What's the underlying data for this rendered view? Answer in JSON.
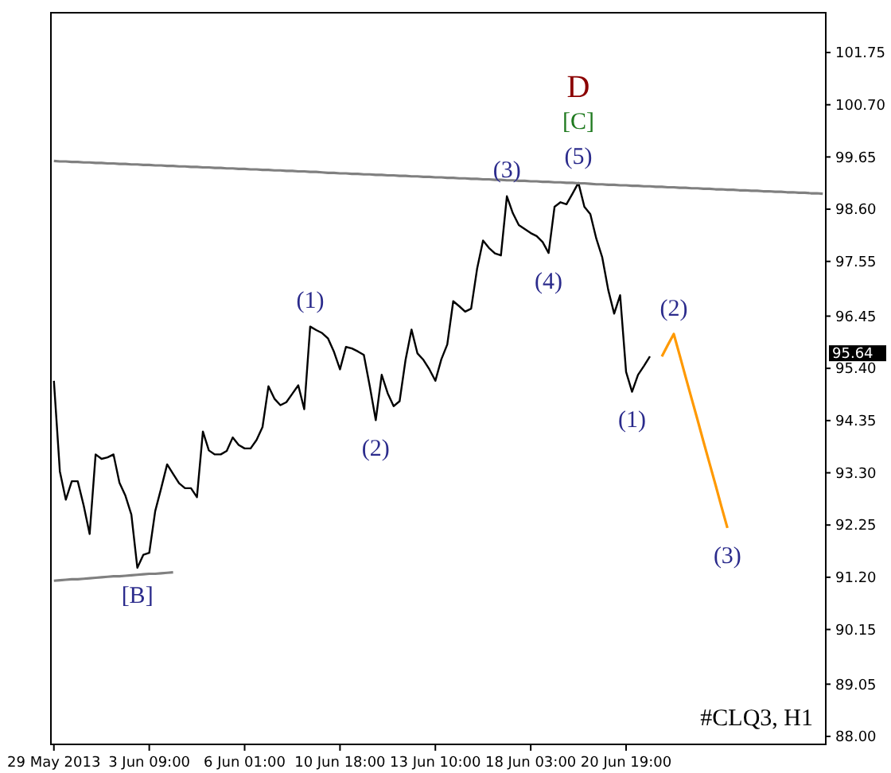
{
  "chart_data": {
    "type": "line",
    "grid": false,
    "marker": "none",
    "line_style": "solid",
    "ylim": [
      87.84,
      102.55
    ],
    "categories": [
      "29 May 2013",
      null,
      null,
      null,
      null,
      null,
      null,
      null,
      null,
      null,
      null,
      null,
      null,
      null,
      null,
      null,
      "3 Jun 09:00",
      null,
      null,
      null,
      null,
      null,
      null,
      null,
      null,
      null,
      null,
      null,
      null,
      null,
      null,
      null,
      "6 Jun 01:00",
      null,
      null,
      null,
      null,
      null,
      null,
      null,
      null,
      null,
      null,
      null,
      null,
      null,
      null,
      null,
      "10 Jun 18:00",
      null,
      null,
      null,
      null,
      null,
      null,
      null,
      null,
      null,
      null,
      null,
      null,
      null,
      null,
      null,
      "13 Jun 10:00",
      null,
      null,
      null,
      null,
      null,
      null,
      null,
      null,
      null,
      null,
      null,
      null,
      null,
      null,
      null,
      "18 Jun 03:00",
      null,
      null,
      null,
      null,
      null,
      null,
      null,
      null,
      null,
      null,
      null,
      null,
      null,
      null,
      null,
      "20 Jun 19:00",
      null,
      null,
      null,
      null,
      null,
      null,
      null,
      null,
      null,
      null,
      null,
      null,
      null,
      null,
      null,
      null,
      null,
      null,
      null,
      null,
      null,
      null,
      null,
      null,
      null,
      null,
      null,
      null,
      null,
      null,
      null,
      null,
      null
    ],
    "yticks": [
      {
        "value": 88,
        "label": "88.00"
      },
      {
        "value": 89.05,
        "label": "89.05"
      },
      {
        "value": 90.15,
        "label": "90.15"
      },
      {
        "value": 91.2,
        "label": "91.20"
      },
      {
        "value": 92.25,
        "label": "92.25"
      },
      {
        "value": 93.3,
        "label": "93.30"
      },
      {
        "value": 94.35,
        "label": "94.35"
      },
      {
        "value": 95.4,
        "label": "95.40"
      },
      {
        "value": 96.45,
        "label": "96.45"
      },
      {
        "value": 97.55,
        "label": "97.55"
      },
      {
        "value": 98.6,
        "label": "98.60"
      },
      {
        "value": 99.65,
        "label": "99.65"
      },
      {
        "value": 100.7,
        "label": "100.70"
      },
      {
        "value": 101.75,
        "label": "101.75"
      }
    ],
    "series": [
      {
        "color": "#000000",
        "values": [
          95.15,
          93.33,
          92.76,
          93.13,
          93.13,
          92.64,
          92.07,
          93.67,
          93.58,
          93.61,
          93.67,
          93.1,
          92.84,
          92.46,
          91.39,
          91.65,
          91.69,
          92.53,
          92.99,
          93.47,
          93.28,
          93.09,
          92.99,
          92.99,
          92.81,
          94.13,
          93.75,
          93.67,
          93.67,
          93.74,
          94.01,
          93.86,
          93.79,
          93.79,
          93.96,
          94.22,
          95.04,
          94.79,
          94.66,
          94.72,
          94.89,
          95.06,
          94.58,
          96.24,
          96.17,
          96.11,
          96.0,
          95.73,
          95.38,
          95.83,
          95.8,
          95.74,
          95.67,
          95.04,
          94.36,
          95.27,
          94.9,
          94.64,
          94.74,
          95.57,
          96.18,
          95.7,
          95.57,
          95.38,
          95.15,
          95.58,
          95.88,
          96.75,
          96.65,
          96.54,
          96.6,
          97.4,
          97.97,
          97.82,
          97.71,
          97.67,
          98.86,
          98.52,
          98.28,
          98.2,
          98.12,
          98.06,
          97.94,
          97.72,
          98.65,
          98.74,
          98.7,
          98.91,
          99.13,
          98.65,
          98.5,
          98.01,
          97.63,
          96.98,
          96.5,
          96.87,
          95.33,
          94.93,
          95.27,
          95.45,
          95.64,
          null,
          null,
          null,
          null,
          null,
          null,
          null,
          null,
          null,
          null,
          null,
          null,
          null,
          null,
          null,
          null,
          null,
          null,
          null,
          null,
          null,
          null,
          null,
          null,
          null,
          null,
          null,
          null,
          null
        ]
      },
      {
        "color": "#808080",
        "values": [
          99.57,
          99.56,
          99.56,
          99.55,
          99.55,
          99.54,
          99.54,
          99.53,
          99.53,
          99.52,
          99.52,
          99.51,
          99.51,
          99.5,
          99.5,
          99.49,
          99.49,
          99.48,
          99.48,
          99.47,
          99.47,
          99.46,
          99.46,
          99.45,
          99.45,
          99.44,
          99.44,
          99.43,
          99.43,
          99.42,
          99.42,
          99.41,
          99.41,
          99.4,
          99.4,
          99.39,
          99.39,
          99.38,
          99.38,
          99.37,
          99.37,
          99.36,
          99.36,
          99.35,
          99.35,
          99.34,
          99.33,
          99.33,
          99.32,
          99.32,
          99.31,
          99.31,
          99.3,
          99.3,
          99.29,
          99.29,
          99.28,
          99.28,
          99.27,
          99.27,
          99.26,
          99.26,
          99.25,
          99.25,
          99.24,
          99.24,
          99.23,
          99.23,
          99.22,
          99.22,
          99.21,
          99.21,
          99.2,
          99.2,
          99.19,
          99.19,
          99.18,
          99.18,
          99.17,
          99.17,
          99.16,
          99.16,
          99.15,
          99.15,
          99.14,
          99.14,
          99.13,
          99.13,
          99.12,
          99.12,
          99.11,
          99.1,
          99.1,
          99.09,
          99.09,
          99.08,
          99.08,
          99.07,
          99.07,
          99.06,
          99.06,
          99.05,
          99.05,
          99.04,
          99.04,
          99.03,
          99.03,
          99.02,
          99.02,
          99.01,
          99.01,
          99.0,
          99.0,
          98.99,
          98.99,
          98.98,
          98.98,
          98.97,
          98.97,
          98.96,
          98.96,
          98.95,
          98.95,
          98.94,
          98.94,
          98.93,
          98.93,
          98.92,
          98.92,
          98.91
        ]
      },
      {
        "color": "#808080",
        "values": [
          91.13,
          91.14,
          91.15,
          91.16,
          91.16,
          91.17,
          91.18,
          91.19,
          91.2,
          91.21,
          91.22,
          91.22,
          91.23,
          91.24,
          91.25,
          91.26,
          91.27,
          91.27,
          91.28,
          91.29,
          91.3,
          null,
          null,
          null,
          null,
          null,
          null,
          null,
          null,
          null,
          null,
          null,
          null,
          null,
          null,
          null,
          null,
          null,
          null,
          null,
          null,
          null,
          null,
          null,
          null,
          null,
          null,
          null,
          null,
          null,
          null,
          null,
          null,
          null,
          null,
          null,
          null,
          null,
          null,
          null,
          null,
          null,
          null,
          null,
          null,
          null,
          null,
          null,
          null,
          null,
          null,
          null,
          null,
          null,
          null,
          null,
          null,
          null,
          null,
          null,
          null,
          null,
          null,
          null,
          null,
          null,
          null,
          null,
          null,
          null,
          null,
          null,
          null,
          null,
          null,
          null,
          null,
          null,
          null,
          null,
          null,
          null,
          null,
          null,
          null,
          null,
          null,
          null,
          null,
          null,
          null,
          null,
          null,
          null,
          null,
          null,
          null,
          null,
          null,
          null,
          null,
          null,
          null,
          null,
          null,
          null,
          null,
          null,
          null,
          null
        ]
      },
      {
        "color": "#ff9900",
        "values": [
          null,
          null,
          null,
          null,
          null,
          null,
          null,
          null,
          null,
          null,
          null,
          null,
          null,
          null,
          null,
          null,
          null,
          null,
          null,
          null,
          null,
          null,
          null,
          null,
          null,
          null,
          null,
          null,
          null,
          null,
          null,
          null,
          null,
          null,
          null,
          null,
          null,
          null,
          null,
          null,
          null,
          null,
          null,
          null,
          null,
          null,
          null,
          null,
          null,
          null,
          null,
          null,
          null,
          null,
          null,
          null,
          null,
          null,
          null,
          null,
          null,
          null,
          null,
          null,
          null,
          null,
          null,
          null,
          null,
          null,
          null,
          null,
          null,
          null,
          null,
          null,
          null,
          null,
          null,
          null,
          null,
          null,
          null,
          null,
          null,
          null,
          null,
          null,
          null,
          null,
          null,
          null,
          null,
          null,
          null,
          null,
          null,
          null,
          null,
          null,
          null,
          null,
          95.64,
          95.87,
          96.09,
          95.66,
          95.22,
          94.79,
          94.36,
          93.92,
          93.49,
          93.06,
          92.62,
          92.19,
          null,
          null,
          null,
          null,
          null,
          null,
          null,
          null,
          null,
          null,
          null,
          null,
          null,
          null,
          null,
          null
        ]
      }
    ],
    "annotations": [
      {
        "text": "(5)",
        "y": 99.13
      },
      {
        "text": "[C]",
        "y": 99.13
      },
      {
        "text": "D",
        "y": 99.13
      },
      {
        "text": "(3)",
        "y": 98.86
      },
      {
        "text": "(4)",
        "y": 97.72
      },
      {
        "text": "(1)",
        "y": 96.24
      },
      {
        "text": "(2)",
        "y": 94.36
      },
      {
        "text": "[B]",
        "y": 91.39
      },
      {
        "text": "(1)",
        "y": 94.93
      },
      {
        "text": "(2)",
        "y": 96.09
      },
      {
        "text": "(3)",
        "y": 92.19
      },
      "95.64",
      "#CLQ3, H1"
    ]
  }
}
